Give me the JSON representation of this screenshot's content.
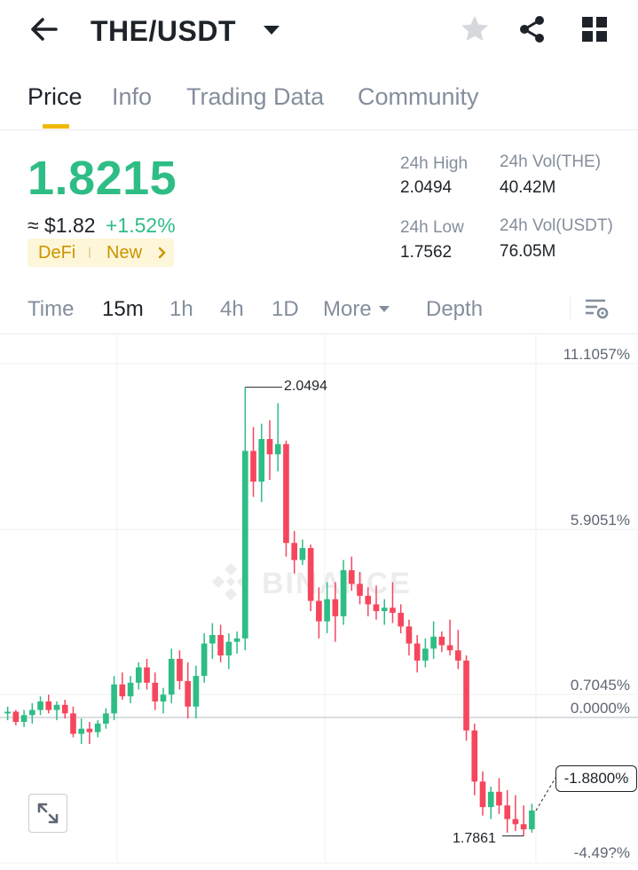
{
  "header": {
    "pair": "THE/USDT",
    "icons": {
      "back": "arrow-left-icon",
      "dropdown": "caret-down-icon",
      "favorite": "star-icon",
      "share": "share-icon",
      "apps": "grid-icon"
    }
  },
  "tabs": [
    {
      "label": "Price",
      "active": true
    },
    {
      "label": "Info"
    },
    {
      "label": "Trading Data"
    },
    {
      "label": "Community"
    }
  ],
  "price": {
    "last": "1.8215",
    "fiat": "≈ $1.82",
    "change": "+1.52%",
    "tags": [
      "DeFi",
      "New"
    ]
  },
  "stats": {
    "high_label": "24h High",
    "high_value": "2.0494",
    "low_label": "24h Low",
    "low_value": "1.7562",
    "vol_base_label": "24h Vol(THE)",
    "vol_base_value": "40.42M",
    "vol_quote_label": "24h Vol(USDT)",
    "vol_quote_value": "76.05M"
  },
  "intervals": {
    "time": "Time",
    "items": [
      "15m",
      "1h",
      "4h",
      "1D"
    ],
    "active": "15m",
    "more": "More",
    "depth": "Depth"
  },
  "chart_data": {
    "type": "candlestick",
    "axis_labels": [
      "11.1057%",
      "5.9051%",
      "0.7045%",
      "0.0000%",
      "-1.8800%"
    ],
    "axis_bottom_partial": "-4.49?%",
    "max_marker": "2.0494",
    "min_marker": "1.7861",
    "current_change": "-1.8800%",
    "watermark": "BINANCE",
    "colors": {
      "up": "#2ebd85",
      "down": "#f6465d"
    },
    "price_range": [
      1.776,
      2.07
    ],
    "candles": [
      [
        1.858,
        1.862,
        1.854,
        1.859
      ],
      [
        1.859,
        1.86,
        1.851,
        1.853
      ],
      [
        1.853,
        1.86,
        1.85,
        1.857
      ],
      [
        1.857,
        1.864,
        1.852,
        1.86
      ],
      [
        1.86,
        1.868,
        1.857,
        1.865
      ],
      [
        1.865,
        1.869,
        1.858,
        1.86
      ],
      [
        1.86,
        1.865,
        1.854,
        1.863
      ],
      [
        1.863,
        1.866,
        1.855,
        1.858
      ],
      [
        1.858,
        1.862,
        1.844,
        1.846
      ],
      [
        1.846,
        1.855,
        1.84,
        1.849
      ],
      [
        1.849,
        1.853,
        1.84,
        1.847
      ],
      [
        1.847,
        1.854,
        1.844,
        1.852
      ],
      [
        1.852,
        1.861,
        1.849,
        1.858
      ],
      [
        1.858,
        1.88,
        1.854,
        1.875
      ],
      [
        1.875,
        1.882,
        1.866,
        1.868
      ],
      [
        1.868,
        1.88,
        1.864,
        1.876
      ],
      [
        1.876,
        1.888,
        1.872,
        1.885
      ],
      [
        1.885,
        1.89,
        1.872,
        1.876
      ],
      [
        1.876,
        1.882,
        1.86,
        1.865
      ],
      [
        1.865,
        1.873,
        1.858,
        1.869
      ],
      [
        1.869,
        1.896,
        1.864,
        1.89
      ],
      [
        1.89,
        1.895,
        1.872,
        1.877
      ],
      [
        1.877,
        1.888,
        1.855,
        1.862
      ],
      [
        1.862,
        1.886,
        1.855,
        1.88
      ],
      [
        1.88,
        1.905,
        1.876,
        1.899
      ],
      [
        1.899,
        1.911,
        1.89,
        1.904
      ],
      [
        1.904,
        1.91,
        1.888,
        1.892
      ],
      [
        1.892,
        1.905,
        1.884,
        1.9
      ],
      [
        1.9,
        1.906,
        1.893,
        1.902
      ],
      [
        1.902,
        2.0494,
        1.895,
        2.012
      ],
      [
        2.012,
        2.026,
        1.985,
        1.994
      ],
      [
        1.994,
        2.028,
        1.982,
        2.019
      ],
      [
        2.019,
        2.03,
        1.995,
        2.01
      ],
      [
        2.01,
        2.04,
        2.0,
        2.016
      ],
      [
        2.016,
        2.018,
        1.95,
        1.958
      ],
      [
        1.958,
        1.965,
        1.94,
        1.948
      ],
      [
        1.948,
        1.96,
        1.945,
        1.955
      ],
      [
        1.955,
        1.957,
        1.918,
        1.924
      ],
      [
        1.924,
        1.932,
        1.902,
        1.912
      ],
      [
        1.912,
        1.935,
        1.905,
        1.925
      ],
      [
        1.925,
        1.935,
        1.9,
        1.915
      ],
      [
        1.915,
        1.948,
        1.91,
        1.942
      ],
      [
        1.942,
        1.95,
        1.93,
        1.934
      ],
      [
        1.934,
        1.941,
        1.922,
        1.927
      ],
      [
        1.927,
        1.932,
        1.915,
        1.922
      ],
      [
        1.922,
        1.933,
        1.913,
        1.918
      ],
      [
        1.918,
        1.925,
        1.91,
        1.92
      ],
      [
        1.92,
        1.935,
        1.911,
        1.917
      ],
      [
        1.917,
        1.922,
        1.905,
        1.909
      ],
      [
        1.909,
        1.913,
        1.892,
        1.899
      ],
      [
        1.899,
        1.904,
        1.882,
        1.889
      ],
      [
        1.889,
        1.902,
        1.885,
        1.896
      ],
      [
        1.896,
        1.912,
        1.89,
        1.903
      ],
      [
        1.903,
        1.906,
        1.894,
        1.898
      ],
      [
        1.898,
        1.913,
        1.892,
        1.895
      ],
      [
        1.895,
        1.907,
        1.884,
        1.889
      ],
      [
        1.889,
        1.892,
        1.842,
        1.848
      ],
      [
        1.848,
        1.852,
        1.81,
        1.818
      ],
      [
        1.818,
        1.824,
        1.798,
        1.803
      ],
      [
        1.803,
        1.815,
        1.796,
        1.812
      ],
      [
        1.812,
        1.82,
        1.799,
        1.804
      ],
      [
        1.804,
        1.813,
        1.788,
        1.796
      ],
      [
        1.796,
        1.81,
        1.789,
        1.793
      ],
      [
        1.793,
        1.804,
        1.7861,
        1.79
      ],
      [
        1.79,
        1.805,
        1.788,
        1.801
      ]
    ]
  }
}
